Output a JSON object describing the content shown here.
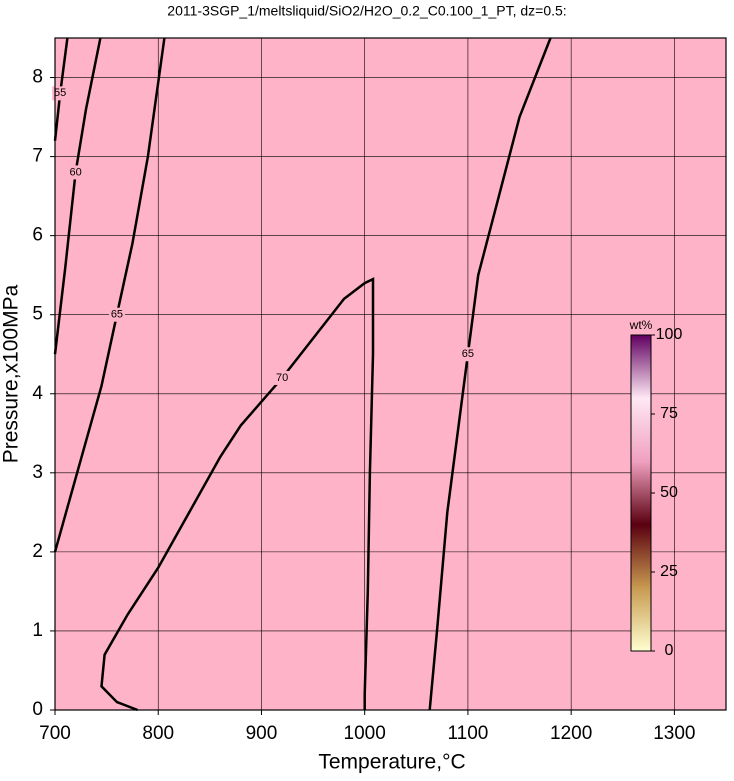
{
  "chart_data": {
    "type": "contour",
    "title": "2011-3SGP_1/meltsliquid/SiO2/H2O_0.2_C0.100_1_PT, dz=0.5:",
    "x_label": "Temperature,°C",
    "y_label": "Pressure,x100MPa",
    "xlim": [
      700,
      1350
    ],
    "ylim": [
      0,
      8.5
    ],
    "xticks": [
      700,
      800,
      900,
      1000,
      1100,
      1200,
      1300
    ],
    "yticks": [
      0,
      1,
      2,
      3,
      4,
      5,
      6,
      7,
      8
    ],
    "grid": true,
    "background": "#ffb3c8",
    "series": [
      {
        "name": "55",
        "color": "#000000",
        "x": [
          700,
          705,
          712
        ],
        "y": [
          7.2,
          7.8,
          8.5
        ]
      },
      {
        "name": "60",
        "color": "#000000",
        "x": [
          700,
          710,
          720,
          730,
          744
        ],
        "y": [
          4.5,
          5.6,
          6.8,
          7.6,
          8.5
        ]
      },
      {
        "name": "65",
        "color": "#000000",
        "x": [
          700,
          715,
          730,
          745,
          760,
          775,
          790,
          806
        ],
        "y": [
          2.0,
          2.7,
          3.4,
          4.1,
          5.0,
          5.9,
          7.0,
          8.5
        ]
      },
      {
        "name": "70",
        "color": "#000000",
        "x": [
          780,
          760,
          745,
          748,
          770,
          800,
          830,
          860,
          880,
          920,
          950,
          980,
          1000,
          1008,
          1008,
          1005,
          1003,
          1000,
          1000
        ],
        "y": [
          0,
          0.1,
          0.3,
          0.7,
          1.2,
          1.8,
          2.5,
          3.2,
          3.6,
          4.2,
          4.7,
          5.2,
          5.4,
          5.45,
          4.5,
          3.0,
          1.5,
          0.2,
          0
        ]
      },
      {
        "name": "65",
        "color": "#000000",
        "x": [
          1063,
          1070,
          1080,
          1090,
          1100,
          1110,
          1130,
          1150,
          1180
        ],
        "y": [
          0,
          1.0,
          2.5,
          3.5,
          4.5,
          5.5,
          6.5,
          7.5,
          8.5
        ]
      }
    ],
    "colorbar": {
      "label": "wt%",
      "lim": [
        0,
        100
      ],
      "ticks": [
        0,
        25,
        50,
        75,
        100
      ],
      "colors": [
        "#ffffd0",
        "#c89a50",
        "#5a0010",
        "#f0a0c0",
        "#ffe8f4",
        "#600060"
      ]
    }
  }
}
